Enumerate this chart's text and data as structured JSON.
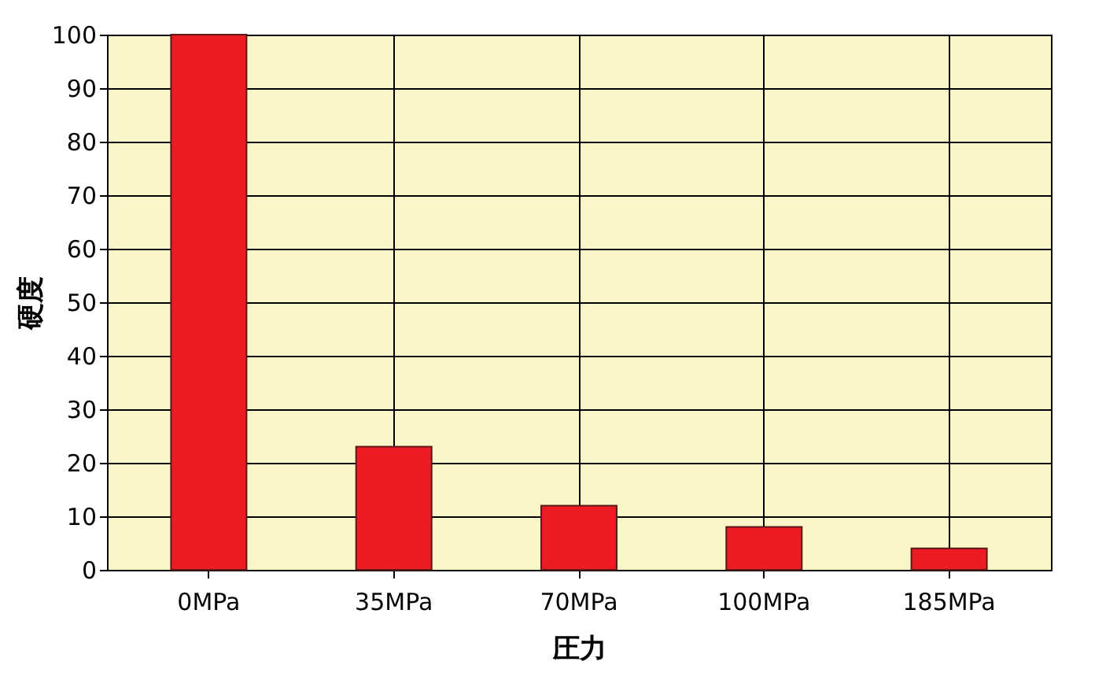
{
  "chart_data": {
    "type": "bar",
    "xlabel": "圧力",
    "ylabel": "硬度",
    "categories": [
      "0MPa",
      "35MPa",
      "70MPa",
      "100MPa",
      "185MPa"
    ],
    "values": [
      100,
      23,
      12,
      8,
      4
    ],
    "color": "#ed1c24",
    "ylim": [
      0,
      100
    ],
    "yticks": [
      0,
      10,
      20,
      30,
      40,
      50,
      60,
      70,
      80,
      90,
      100
    ],
    "grid": true
  }
}
